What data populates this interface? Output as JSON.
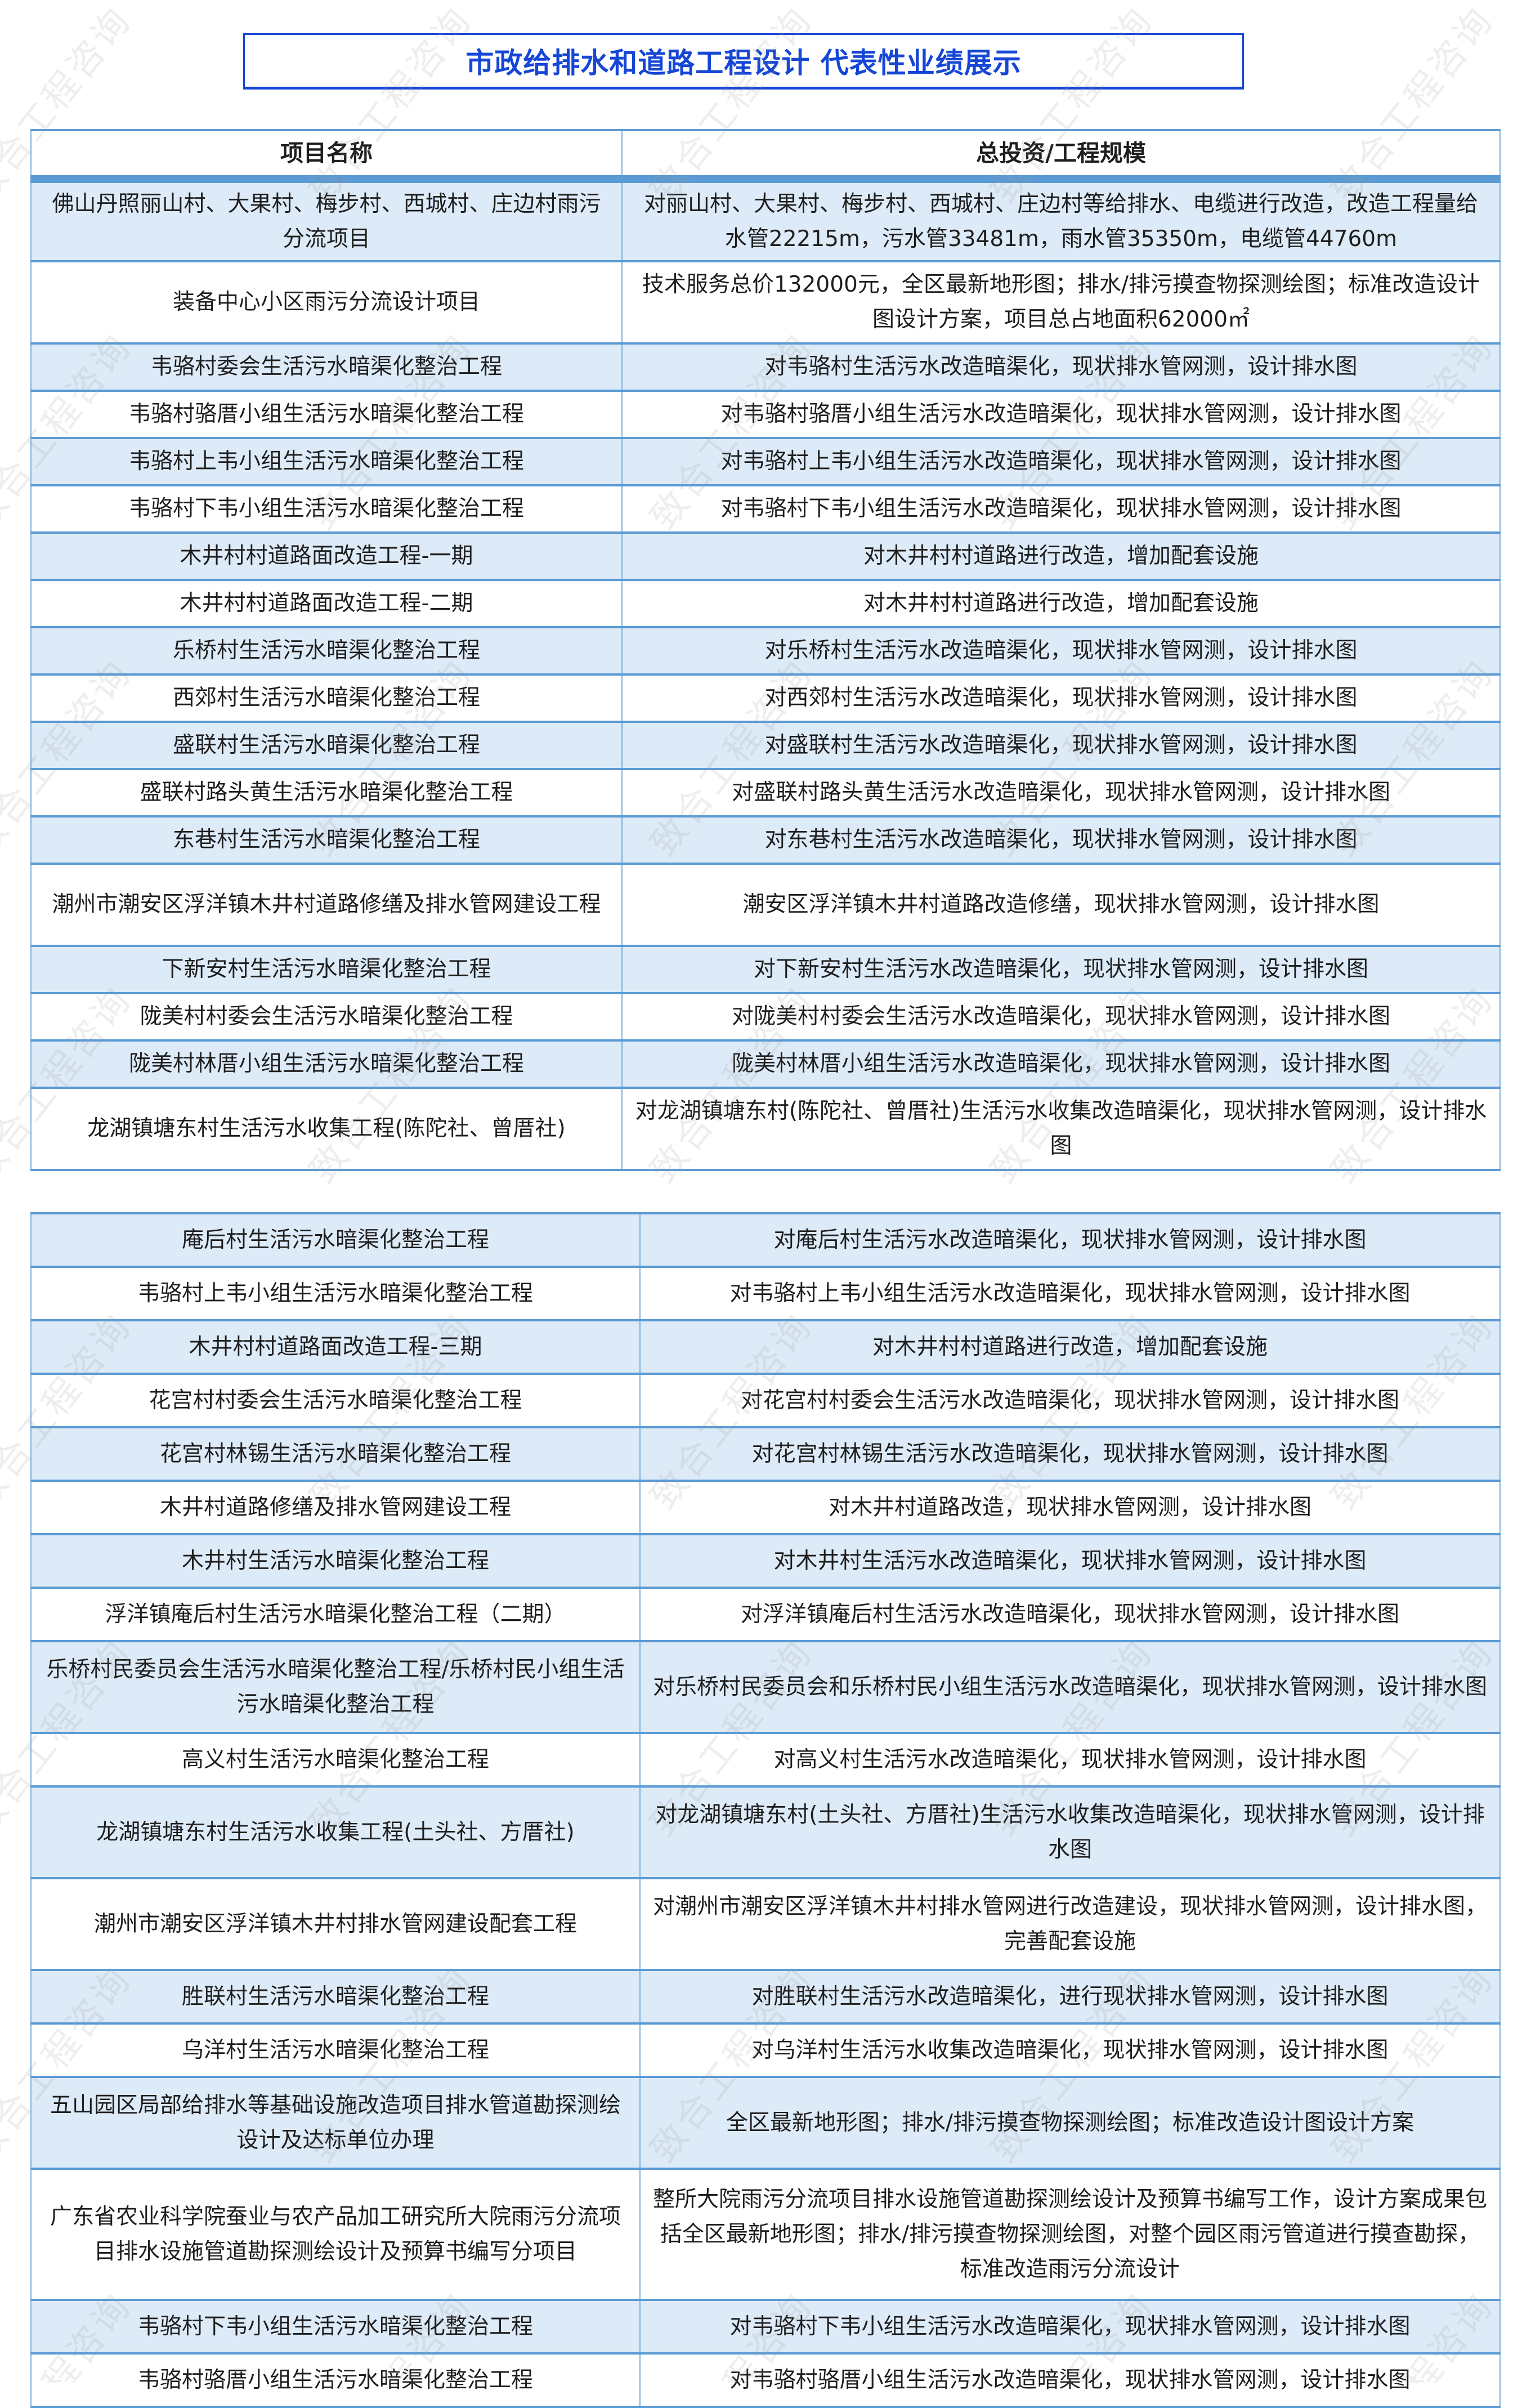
{
  "title": "市政给排水和道路工程设计 代表性业绩展示",
  "watermark": "致合工程咨询",
  "colors": {
    "title": "#1546d6",
    "border": "#5b9bd5",
    "stripe": "#ddeaf7"
  },
  "table1": {
    "headers": [
      "项目名称",
      "总投资/工程规模"
    ],
    "rows": [
      {
        "name": "佛山丹照丽山村、大果村、梅步村、西城村、庄边村雨污分流项目",
        "scale": "对丽山村、大果村、梅步村、西城村、庄边村等给排水、电缆进行改造，改造工程量给水管22215m，污水管33481m，雨水管35350m，电缆管44760m"
      },
      {
        "name": "装备中心小区雨污分流设计项目",
        "scale": "技术服务总价132000元，全区最新地形图；排水/排污摸查物探测绘图；标准改造设计图设计方案，项目总占地面积62000㎡"
      },
      {
        "name": "韦骆村委会生活污水暗渠化整治工程",
        "scale": "对韦骆村生活污水改造暗渠化，现状排水管网测，设计排水图"
      },
      {
        "name": "韦骆村骆厝小组生活污水暗渠化整治工程",
        "scale": "对韦骆村骆厝小组生活污水改造暗渠化，现状排水管网测，设计排水图"
      },
      {
        "name": "韦骆村上韦小组生活污水暗渠化整治工程",
        "scale": "对韦骆村上韦小组生活污水改造暗渠化，现状排水管网测，设计排水图"
      },
      {
        "name": "韦骆村下韦小组生活污水暗渠化整治工程",
        "scale": "对韦骆村下韦小组生活污水改造暗渠化，现状排水管网测，设计排水图"
      },
      {
        "name": "木井村村道路面改造工程-一期",
        "scale": "对木井村村道路进行改造，增加配套设施"
      },
      {
        "name": "木井村村道路面改造工程-二期",
        "scale": "对木井村村道路进行改造，增加配套设施"
      },
      {
        "name": "乐桥村生活污水暗渠化整治工程",
        "scale": "对乐桥村生活污水改造暗渠化，现状排水管网测，设计排水图"
      },
      {
        "name": "西郊村生活污水暗渠化整治工程",
        "scale": "对西郊村生活污水改造暗渠化，现状排水管网测，设计排水图"
      },
      {
        "name": "盛联村生活污水暗渠化整治工程",
        "scale": "对盛联村生活污水改造暗渠化，现状排水管网测，设计排水图"
      },
      {
        "name": "盛联村路头黄生活污水暗渠化整治工程",
        "scale": "对盛联村路头黄生活污水改造暗渠化，现状排水管网测，设计排水图"
      },
      {
        "name": "东巷村生活污水暗渠化整治工程",
        "scale": "对东巷村生活污水改造暗渠化，现状排水管网测，设计排水图"
      },
      {
        "name": "潮州市潮安区浮洋镇木井村道路修缮及排水管网建设工程",
        "scale": "潮安区浮洋镇木井村道路改造修缮，现状排水管网测，设计排水图"
      },
      {
        "name": "下新安村生活污水暗渠化整治工程",
        "scale": "对下新安村生活污水改造暗渠化，现状排水管网测，设计排水图"
      },
      {
        "name": "陇美村村委会生活污水暗渠化整治工程",
        "scale": "对陇美村村委会生活污水改造暗渠化，现状排水管网测，设计排水图"
      },
      {
        "name": "陇美村林厝小组生活污水暗渠化整治工程",
        "scale": "陇美村林厝小组生活污水改造暗渠化，现状排水管网测，设计排水图"
      },
      {
        "name": "龙湖镇塘东村生活污水收集工程(陈陀社、曾厝社)",
        "scale": "对龙湖镇塘东村(陈陀社、曾厝社)生活污水收集改造暗渠化，现状排水管网测，设计排水图"
      }
    ]
  },
  "table2": {
    "rows": [
      {
        "name": "庵后村生活污水暗渠化整治工程",
        "scale": "对庵后村生活污水改造暗渠化，现状排水管网测，设计排水图"
      },
      {
        "name": "韦骆村上韦小组生活污水暗渠化整治工程",
        "scale": "对韦骆村上韦小组生活污水改造暗渠化，现状排水管网测，设计排水图"
      },
      {
        "name": "木井村村道路面改造工程-三期",
        "scale": "对木井村村道路进行改造，增加配套设施"
      },
      {
        "name": "花宫村村委会生活污水暗渠化整治工程",
        "scale": "对花宫村村委会生活污水改造暗渠化，现状排水管网测，设计排水图"
      },
      {
        "name": "花宫村林锡生活污水暗渠化整治工程",
        "scale": "对花宫村林锡生活污水改造暗渠化，现状排水管网测，设计排水图"
      },
      {
        "name": "木井村道路修缮及排水管网建设工程",
        "scale": "对木井村道路改造，现状排水管网测，设计排水图"
      },
      {
        "name": "木井村生活污水暗渠化整治工程",
        "scale": "对木井村生活污水改造暗渠化，现状排水管网测，设计排水图"
      },
      {
        "name": "浮洋镇庵后村生活污水暗渠化整治工程（二期）",
        "scale": "对浮洋镇庵后村生活污水改造暗渠化，现状排水管网测，设计排水图"
      },
      {
        "name": "乐桥村民委员会生活污水暗渠化整治工程/乐桥村民小组生活污水暗渠化整治工程",
        "scale": "对乐桥村民委员会和乐桥村民小组生活污水改造暗渠化，现状排水管网测，设计排水图"
      },
      {
        "name": "高义村生活污水暗渠化整治工程",
        "scale": "对高义村生活污水改造暗渠化，现状排水管网测，设计排水图"
      },
      {
        "name": "龙湖镇塘东村生活污水收集工程(土头社、方厝社)",
        "scale": "对龙湖镇塘东村(土头社、方厝社)生活污水收集改造暗渠化，现状排水管网测，设计排水图"
      },
      {
        "name": "潮州市潮安区浮洋镇木井村排水管网建设配套工程",
        "scale": "对潮州市潮安区浮洋镇木井村排水管网进行改造建设，现状排水管网测，设计排水图，完善配套设施"
      },
      {
        "name": "胜联村生活污水暗渠化整治工程",
        "scale": "对胜联村生活污水改造暗渠化，进行现状排水管网测，设计排水图"
      },
      {
        "name": "乌洋村生活污水暗渠化整治工程",
        "scale": "对乌洋村生活污水收集改造暗渠化，现状排水管网测，设计排水图"
      },
      {
        "name": "五山园区局部给排水等基础设施改造项目排水管道勘探测绘设计及达标单位办理",
        "scale": "全区最新地形图；排水/排污摸查物探测绘图；标准改造设计图设计方案"
      },
      {
        "name": "广东省农业科学院蚕业与农产品加工研究所大院雨污分流项目排水设施管道勘探测绘设计及预算书编写分项目",
        "scale": "整所大院雨污分流项目排水设施管道勘探测绘设计及预算书编写工作，设计方案成果包括全区最新地形图；排水/排污摸查物探测绘图，对整个园区雨污管道进行摸查勘探，标准改造雨污分流设计"
      },
      {
        "name": "韦骆村下韦小组生活污水暗渠化整治工程",
        "scale": "对韦骆村下韦小组生活污水改造暗渠化，现状排水管网测，设计排水图"
      },
      {
        "name": "韦骆村骆厝小组生活污水暗渠化整治工程",
        "scale": "对韦骆村骆厝小组生活污水改造暗渠化，现状排水管网测，设计排水图"
      }
    ]
  }
}
